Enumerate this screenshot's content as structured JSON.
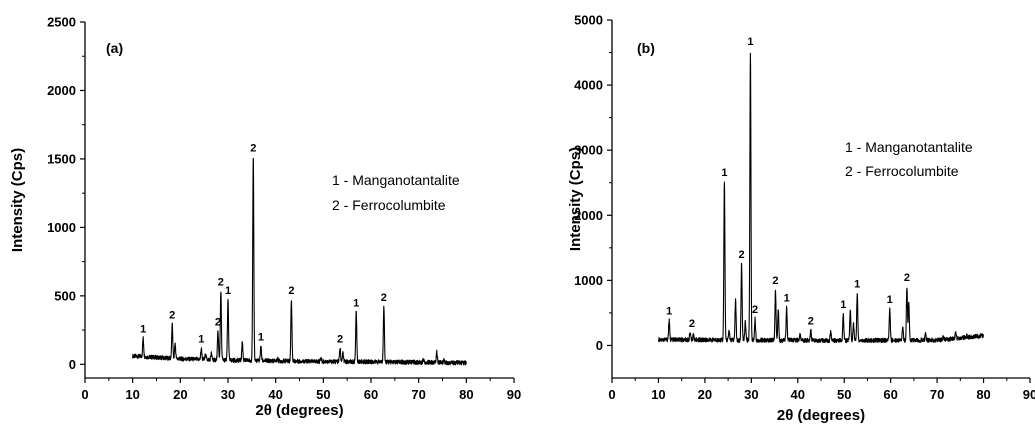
{
  "chart_data": [
    {
      "type": "line",
      "panel_label": "(a)",
      "xlabel": "2θ (degrees)",
      "ylabel": "Intensity (Cps)",
      "xlim": [
        0,
        90
      ],
      "ylim": [
        -100,
        2500
      ],
      "xticks": [
        0,
        10,
        20,
        30,
        40,
        50,
        60,
        70,
        80,
        90
      ],
      "yticks": [
        0,
        500,
        1000,
        1500,
        2000,
        2500
      ],
      "grid": false,
      "legend": [
        "1 - Manganotantalite",
        "2 - Ferrocolumbite"
      ],
      "legend_position": "right-center",
      "baseline": [
        [
          10,
          60
        ],
        [
          15,
          50
        ],
        [
          20,
          40
        ],
        [
          30,
          30
        ],
        [
          40,
          25
        ],
        [
          50,
          20
        ],
        [
          60,
          18
        ],
        [
          70,
          15
        ],
        [
          80,
          10
        ]
      ],
      "peaks": [
        {
          "x": 12.2,
          "y": 190
        },
        {
          "x": 18.3,
          "y": 290
        },
        {
          "x": 18.9,
          "y": 150
        },
        {
          "x": 24.4,
          "y": 115
        },
        {
          "x": 25.3,
          "y": 75
        },
        {
          "x": 26.5,
          "y": 80
        },
        {
          "x": 27.9,
          "y": 240
        },
        {
          "x": 28.5,
          "y": 530
        },
        {
          "x": 30.0,
          "y": 470
        },
        {
          "x": 33.0,
          "y": 165
        },
        {
          "x": 35.3,
          "y": 1510
        },
        {
          "x": 36.9,
          "y": 130
        },
        {
          "x": 40.4,
          "y": 40
        },
        {
          "x": 43.3,
          "y": 470
        },
        {
          "x": 49.5,
          "y": 45
        },
        {
          "x": 53.5,
          "y": 115
        },
        {
          "x": 54.1,
          "y": 80
        },
        {
          "x": 56.9,
          "y": 380
        },
        {
          "x": 62.7,
          "y": 420
        },
        {
          "x": 71.0,
          "y": 40
        },
        {
          "x": 73.8,
          "y": 90
        },
        {
          "x": 75.3,
          "y": 35
        }
      ],
      "annotations": [
        {
          "x": 12.2,
          "y": 190,
          "text": "1"
        },
        {
          "x": 18.3,
          "y": 290,
          "text": "2"
        },
        {
          "x": 24.4,
          "y": 115,
          "text": "1"
        },
        {
          "x": 27.9,
          "y": 240,
          "text": "2"
        },
        {
          "x": 28.5,
          "y": 530,
          "text": "2"
        },
        {
          "x": 30.0,
          "y": 470,
          "text": "1"
        },
        {
          "x": 35.3,
          "y": 1510,
          "text": "2"
        },
        {
          "x": 36.9,
          "y": 130,
          "text": "1"
        },
        {
          "x": 43.3,
          "y": 470,
          "text": "2"
        },
        {
          "x": 53.5,
          "y": 115,
          "text": "2"
        },
        {
          "x": 56.9,
          "y": 380,
          "text": "1"
        },
        {
          "x": 62.7,
          "y": 420,
          "text": "2"
        }
      ]
    },
    {
      "type": "line",
      "panel_label": "(b)",
      "xlabel": "2θ (degrees)",
      "ylabel": "Intensity (Cps)",
      "xlim": [
        0,
        90
      ],
      "ylim": [
        -500,
        5000
      ],
      "xticks": [
        0,
        10,
        20,
        30,
        40,
        50,
        60,
        70,
        80,
        90
      ],
      "yticks": [
        0,
        1000,
        2000,
        3000,
        4000,
        5000
      ],
      "grid": false,
      "legend": [
        "1 - Manganotantalite",
        "2 - Ferrocolumbite"
      ],
      "legend_position": "right-center",
      "baseline": [
        [
          10,
          90
        ],
        [
          20,
          85
        ],
        [
          30,
          80
        ],
        [
          40,
          80
        ],
        [
          50,
          75
        ],
        [
          60,
          80
        ],
        [
          70,
          80
        ],
        [
          80,
          150
        ]
      ],
      "peaks": [
        {
          "x": 12.3,
          "y": 380
        },
        {
          "x": 16.8,
          "y": 190
        },
        {
          "x": 17.5,
          "y": 160
        },
        {
          "x": 24.2,
          "y": 2510
        },
        {
          "x": 25.2,
          "y": 230
        },
        {
          "x": 26.6,
          "y": 700
        },
        {
          "x": 27.9,
          "y": 1250
        },
        {
          "x": 28.7,
          "y": 360
        },
        {
          "x": 29.8,
          "y": 4520
        },
        {
          "x": 30.8,
          "y": 410
        },
        {
          "x": 35.2,
          "y": 850
        },
        {
          "x": 35.8,
          "y": 560
        },
        {
          "x": 37.6,
          "y": 580
        },
        {
          "x": 40.5,
          "y": 180
        },
        {
          "x": 42.8,
          "y": 230
        },
        {
          "x": 47.1,
          "y": 220
        },
        {
          "x": 49.8,
          "y": 480
        },
        {
          "x": 51.3,
          "y": 560
        },
        {
          "x": 52.0,
          "y": 330
        },
        {
          "x": 52.8,
          "y": 800
        },
        {
          "x": 59.8,
          "y": 560
        },
        {
          "x": 62.6,
          "y": 300
        },
        {
          "x": 63.5,
          "y": 900
        },
        {
          "x": 63.9,
          "y": 650
        },
        {
          "x": 67.5,
          "y": 170
        },
        {
          "x": 71.3,
          "y": 130
        },
        {
          "x": 74.0,
          "y": 200
        },
        {
          "x": 76.4,
          "y": 150
        },
        {
          "x": 78.5,
          "y": 140
        }
      ],
      "annotations": [
        {
          "x": 12.3,
          "y": 380,
          "text": "1"
        },
        {
          "x": 17.2,
          "y": 190,
          "text": "2"
        },
        {
          "x": 24.2,
          "y": 2510,
          "text": "1"
        },
        {
          "x": 27.9,
          "y": 1250,
          "text": "2"
        },
        {
          "x": 29.8,
          "y": 4520,
          "text": "1"
        },
        {
          "x": 30.8,
          "y": 410,
          "text": "2"
        },
        {
          "x": 35.2,
          "y": 850,
          "text": "2"
        },
        {
          "x": 37.6,
          "y": 580,
          "text": "1"
        },
        {
          "x": 42.8,
          "y": 230,
          "text": "2"
        },
        {
          "x": 49.8,
          "y": 480,
          "text": "1"
        },
        {
          "x": 52.8,
          "y": 800,
          "text": "1"
        },
        {
          "x": 59.8,
          "y": 560,
          "text": "1"
        },
        {
          "x": 63.5,
          "y": 900,
          "text": "2"
        }
      ]
    }
  ]
}
